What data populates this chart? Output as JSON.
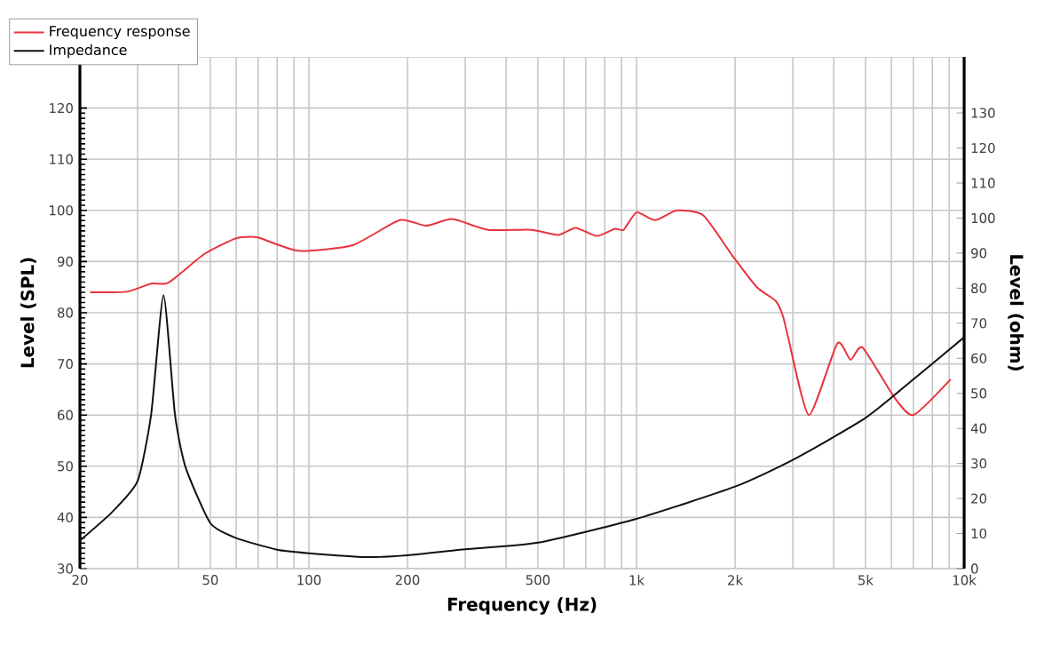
{
  "chart_data": {
    "type": "line",
    "xlabel": "Frequency (Hz)",
    "ylabel": "Level (SPL)",
    "y2label": "Level (ohm)",
    "log": "x",
    "grid": true,
    "legend": "top left",
    "xlim": [
      20,
      10000
    ],
    "xticks": [
      20,
      50,
      100,
      200,
      500,
      {
        "value": 1000,
        "label": "1k"
      },
      {
        "value": 2000,
        "label": "2k"
      },
      {
        "value": 5000,
        "label": "5k"
      },
      {
        "value": 10000,
        "label": "10k"
      }
    ],
    "ylim": [
      30,
      130
    ],
    "yticks": [
      30,
      40,
      50,
      60,
      70,
      80,
      90,
      100,
      110,
      120
    ],
    "y2lim": [
      0,
      146
    ],
    "y2ticks": [
      0,
      10,
      20,
      30,
      40,
      50,
      60,
      70,
      80,
      90,
      100,
      110,
      120,
      130
    ],
    "series": [
      {
        "name": "Frequency response",
        "color": "#e8333c",
        "x": [
          21.5,
          27.8,
          33,
          37.3,
          48,
          59,
          64,
          70,
          93,
          136,
          189,
          228,
          274,
          352,
          478,
          576,
          652,
          755,
          860,
          913,
          1000,
          1140,
          1330,
          1600,
          1970,
          2330,
          2660,
          2800,
          2900,
          3360,
          4100,
          4500,
          4900,
          6100,
          7000,
          9100
        ],
        "values": [
          84,
          84.1,
          85.7,
          85.9,
          91.5,
          94.4,
          94.8,
          94.7,
          92.1,
          93.2,
          98.1,
          97,
          98.3,
          96.2,
          96.2,
          95.2,
          96.6,
          95,
          96.4,
          96.2,
          99.6,
          98.1,
          100,
          99,
          91,
          85,
          82.3,
          79.3,
          75.3,
          60,
          74,
          70.8,
          73.2,
          63.6,
          60,
          67
        ]
      },
      {
        "name": "Impedance",
        "color": "#111111",
        "axis": "y2",
        "x": [
          20,
          25,
          30,
          33,
          36,
          39,
          42,
          50,
          60,
          80,
          100,
          150,
          200,
          300,
          500,
          1000,
          2000,
          3000,
          5000,
          7000,
          10000
        ],
        "values": [
          8,
          16,
          25,
          44,
          78,
          44,
          29,
          13,
          8.7,
          5.4,
          4.4,
          3.3,
          3.8,
          5.5,
          7.4,
          14.2,
          23.4,
          31,
          43,
          54,
          66
        ]
      }
    ]
  }
}
